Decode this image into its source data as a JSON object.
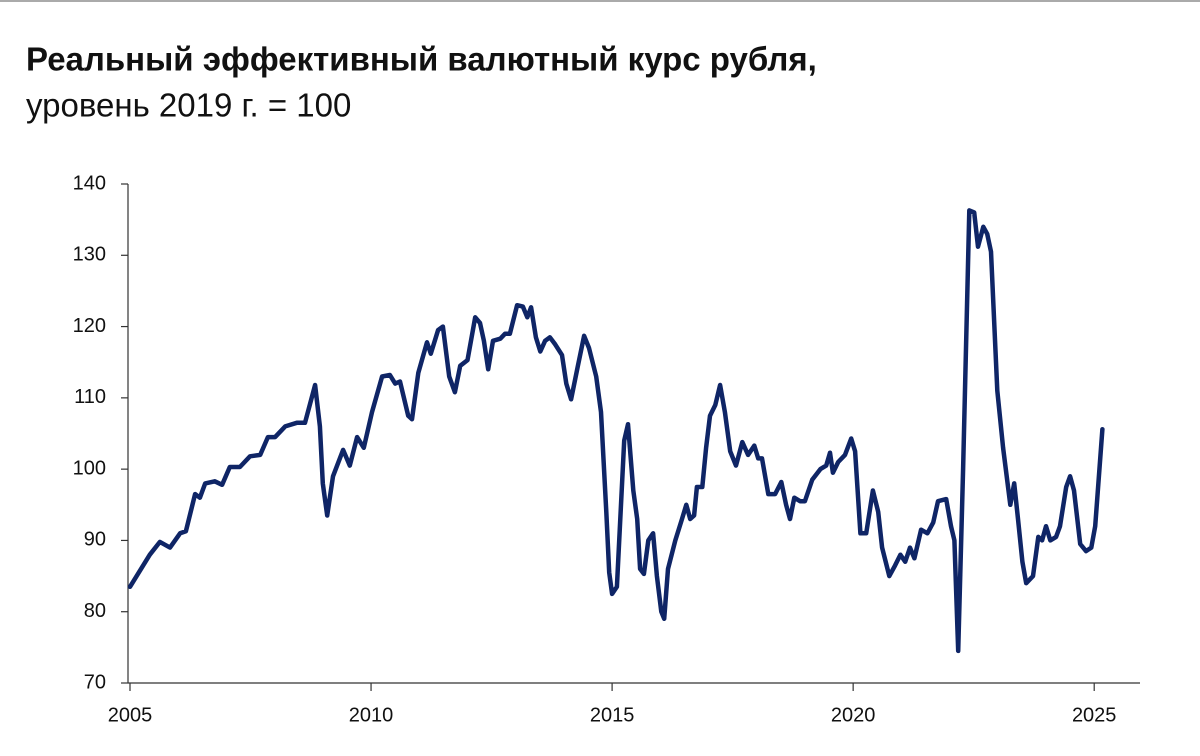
{
  "chart_data": {
    "type": "line",
    "title": "Реальный эффективный валютный курс рубля,",
    "subtitle": "уровень 2019 г. = 100",
    "color": "#0f2566",
    "xlim": [
      2005,
      2025.95
    ],
    "xticks": [
      2005,
      2010,
      2015,
      2020,
      2025
    ],
    "ylim": [
      70,
      140
    ],
    "yticks": [
      70,
      80,
      90,
      100,
      110,
      120,
      130,
      140
    ],
    "x": [
      2005.0,
      2005.41,
      2005.62,
      2005.83,
      2006.04,
      2006.16,
      2006.35,
      2006.45,
      2006.56,
      2006.76,
      2006.91,
      2007.07,
      2007.28,
      2007.49,
      2007.7,
      2007.86,
      2008.01,
      2008.22,
      2008.46,
      2008.63,
      2008.84,
      2008.94,
      2009.0,
      2009.09,
      2009.21,
      2009.42,
      2009.56,
      2009.71,
      2009.85,
      2010.02,
      2010.23,
      2010.39,
      2010.5,
      2010.6,
      2010.77,
      2010.85,
      2010.98,
      2011.16,
      2011.24,
      2011.39,
      2011.49,
      2011.62,
      2011.74,
      2011.85,
      2012.0,
      2012.16,
      2012.26,
      2012.34,
      2012.43,
      2012.53,
      2012.68,
      2012.78,
      2012.88,
      2013.03,
      2013.15,
      2013.24,
      2013.32,
      2013.42,
      2013.51,
      2013.61,
      2013.71,
      2013.82,
      2013.96,
      2014.05,
      2014.15,
      2014.29,
      2014.42,
      2014.52,
      2014.67,
      2014.77,
      2014.88,
      2014.94,
      2015.0,
      2015.1,
      2015.25,
      2015.33,
      2015.44,
      2015.52,
      2015.58,
      2015.66,
      2015.75,
      2015.85,
      2015.93,
      2016.02,
      2016.08,
      2016.16,
      2016.31,
      2016.45,
      2016.54,
      2016.62,
      2016.7,
      2016.76,
      2016.87,
      2016.95,
      2017.03,
      2017.14,
      2017.24,
      2017.34,
      2017.45,
      2017.57,
      2017.7,
      2017.82,
      2017.95,
      2018.03,
      2018.11,
      2018.24,
      2018.38,
      2018.51,
      2018.61,
      2018.69,
      2018.78,
      2018.9,
      2019.0,
      2019.15,
      2019.32,
      2019.44,
      2019.52,
      2019.58,
      2019.69,
      2019.83,
      2019.96,
      2020.04,
      2020.15,
      2020.27,
      2020.41,
      2020.52,
      2020.6,
      2020.75,
      2020.87,
      2020.98,
      2021.08,
      2021.18,
      2021.27,
      2021.41,
      2021.54,
      2021.66,
      2021.76,
      2021.93,
      2022.03,
      2022.1,
      2022.18,
      2022.28,
      2022.41,
      2022.51,
      2022.59,
      2022.7,
      2022.78,
      2022.86,
      2022.99,
      2023.11,
      2023.26,
      2023.34,
      2023.42,
      2023.51,
      2023.59,
      2023.73,
      2023.84,
      2023.92,
      2024.0,
      2024.09,
      2024.21,
      2024.29,
      2024.42,
      2024.5,
      2024.58,
      2024.71,
      2024.83,
      2024.94,
      2025.02,
      2025.17
    ],
    "values": [
      83.5,
      88,
      89.8,
      89,
      91,
      91.3,
      96.5,
      96,
      98,
      98.3,
      97.8,
      100.3,
      100.3,
      101.8,
      102,
      104.5,
      104.5,
      106,
      106.5,
      106.5,
      111.8,
      106,
      98,
      93.5,
      99,
      102.7,
      100.5,
      104.5,
      103,
      108,
      113,
      113.2,
      112,
      112.3,
      107.5,
      107,
      113.5,
      117.8,
      116.2,
      119.5,
      120,
      113,
      110.8,
      114.5,
      115.3,
      121.3,
      120.5,
      118,
      114,
      118,
      118.3,
      119,
      119,
      123,
      122.8,
      121.3,
      122.7,
      118.5,
      116.5,
      118,
      118.5,
      117.5,
      116,
      112,
      109.8,
      114.5,
      118.7,
      117,
      113,
      108,
      94,
      85.5,
      82.5,
      83.5,
      104,
      106.3,
      97,
      93,
      86,
      85.3,
      90,
      91,
      85,
      80,
      79,
      86,
      90,
      93,
      95,
      93,
      93.5,
      97.5,
      97.5,
      103,
      107.5,
      109,
      111.8,
      108,
      102.5,
      100.5,
      103.8,
      102,
      103.3,
      101.5,
      101.5,
      96.5,
      96.5,
      98.2,
      95,
      93,
      96,
      95.5,
      95.5,
      98.5,
      100,
      100.5,
      102.3,
      99.5,
      101,
      102,
      104.3,
      102.5,
      91,
      91,
      97,
      94,
      89,
      85,
      86.5,
      88,
      87,
      89,
      87.5,
      91.5,
      91,
      92.5,
      95.5,
      95.8,
      92,
      90,
      74.5,
      100,
      136.3,
      136,
      131.2,
      134,
      133,
      130.5,
      111,
      103,
      95,
      98,
      93,
      87,
      84,
      85,
      90.5,
      90,
      92,
      90,
      90.5,
      92,
      97.5,
      99,
      97,
      89.5,
      88.5,
      89,
      92,
      105.6
    ]
  }
}
